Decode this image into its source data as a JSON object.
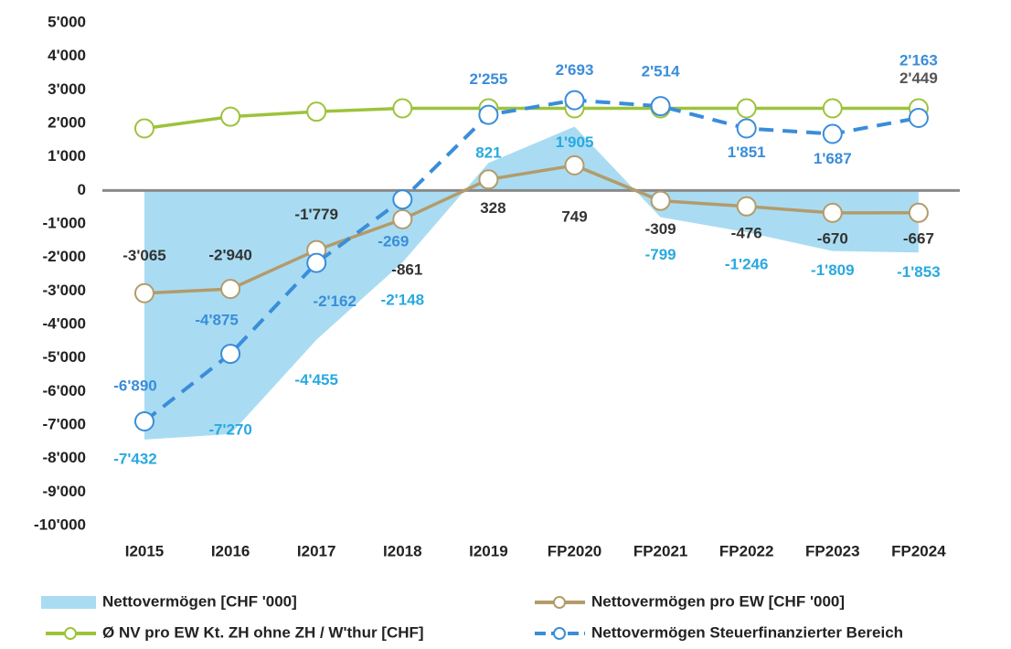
{
  "chart_data": {
    "type": "line",
    "categories": [
      "I2015",
      "I2016",
      "I2017",
      "I2018",
      "I2019",
      "FP2020",
      "FP2021",
      "FP2022",
      "FP2023",
      "FP2024"
    ],
    "ylim": [
      -10000,
      5000
    ],
    "yticks": [
      {
        "value": 5000,
        "label": "5'000"
      },
      {
        "value": 4000,
        "label": "4'000"
      },
      {
        "value": 3000,
        "label": "3'000"
      },
      {
        "value": 2000,
        "label": "2'000"
      },
      {
        "value": 1000,
        "label": "1'000"
      },
      0,
      {
        "value": -1000,
        "label": "-1'000"
      },
      {
        "value": -2000,
        "label": "-2'000"
      },
      {
        "value": -3000,
        "label": "-3'000"
      },
      {
        "value": -4000,
        "label": "-4'000"
      },
      {
        "value": -5000,
        "label": "-5'000"
      },
      {
        "value": -6000,
        "label": "-6'000"
      },
      {
        "value": -7000,
        "label": "-7'000"
      },
      {
        "value": -8000,
        "label": "-8'000"
      },
      {
        "value": -9000,
        "label": "-9'000"
      },
      {
        "value": -10000,
        "label": "-10'000"
      }
    ],
    "grid": false,
    "legend": "bottom",
    "series": [
      {
        "name": "Nettovermögen [CHF '000]",
        "type": "area",
        "color": "#a9dcf2",
        "label_color": "#29a9e0",
        "values": [
          -7432,
          -7270,
          -4455,
          -2148,
          821,
          1905,
          -799,
          -1246,
          -1809,
          -1853
        ],
        "value_labels": [
          "-7'432",
          "-7'270",
          "-4'455",
          "-2'148",
          "821",
          "1'905",
          "-799",
          "-1'246",
          "-1'809",
          "-1'853"
        ]
      },
      {
        "name": "Nettovermögen pro EW [CHF '000]",
        "type": "line",
        "marker": "circle",
        "color": "#b39b6b",
        "label_color": "#333333",
        "values": [
          -3065,
          -2940,
          -1779,
          -861,
          328,
          749,
          -309,
          -476,
          -670,
          -667
        ],
        "value_labels": [
          "-3'065",
          "-2'940",
          "-1'779",
          "-861",
          "328",
          "749",
          "-309",
          "-476",
          "-670",
          "-667"
        ]
      },
      {
        "name": "Ø NV pro EW Kt. ZH ohne ZH / W'thur [CHF]",
        "type": "line",
        "marker": "circle",
        "color": "#9dc33b",
        "label_color": "#555555",
        "values": [
          1850,
          2200,
          2350,
          2450,
          2450,
          2450,
          2450,
          2450,
          2450,
          2449
        ],
        "value_labels": [
          null,
          null,
          null,
          null,
          null,
          null,
          null,
          null,
          null,
          "2'449"
        ]
      },
      {
        "name": "Nettovermögen Steuerfinanzierter Bereich",
        "type": "line",
        "marker": "circle",
        "dashed": true,
        "color": "#3a8dd9",
        "label_color": "#3a8dd9",
        "values": [
          -6890,
          -4875,
          -2162,
          -269,
          2255,
          2693,
          2514,
          1851,
          1687,
          2163
        ],
        "value_labels": [
          "-6'890",
          "-4'875",
          "-2'162",
          "-269",
          "2'255",
          "2'693",
          "2'514",
          "1'851",
          "1'687",
          "2'163"
        ]
      }
    ]
  }
}
